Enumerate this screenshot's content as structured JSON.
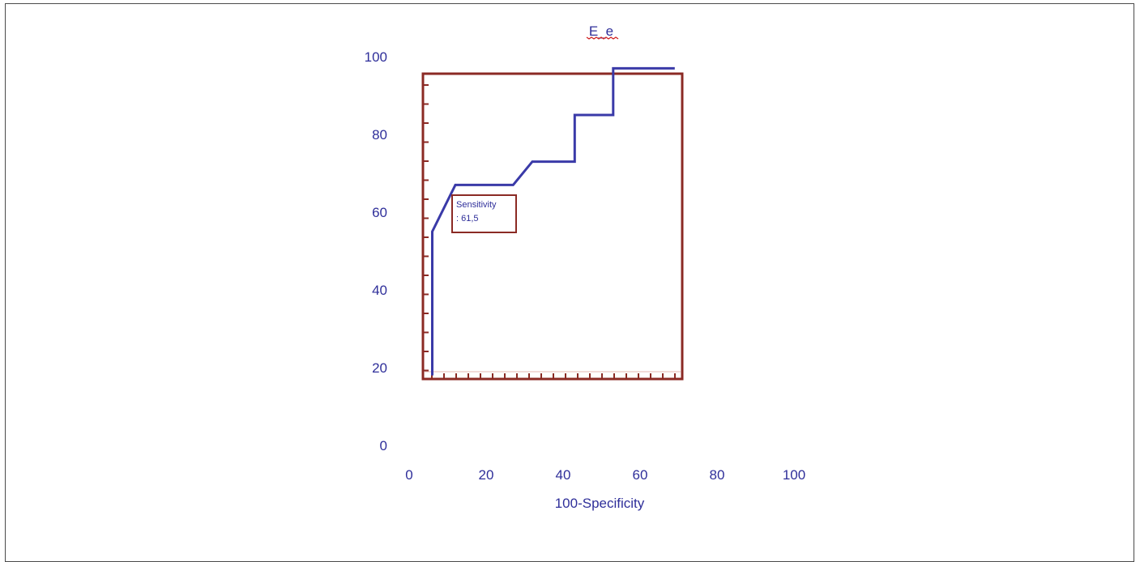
{
  "chart_data": {
    "type": "line",
    "title": "E_e",
    "xlabel": "100-Specificity",
    "ylabel": "",
    "xlim": [
      0,
      100
    ],
    "ylim": [
      0,
      100
    ],
    "x_ticks": [
      "0",
      "20",
      "40",
      "60",
      "80",
      "100"
    ],
    "y_ticks": [
      "0",
      "20",
      "40",
      "60",
      "80",
      "100"
    ],
    "grid": false,
    "series": [
      {
        "x": [
          6,
          6,
          12,
          27,
          32,
          43,
          43,
          53,
          53,
          69
        ],
        "y": [
          18,
          55,
          67,
          67,
          73,
          73,
          85,
          85,
          97,
          97
        ]
      }
    ],
    "annotation": {
      "line1": "Sensitivity",
      "line2": ":  61,5"
    },
    "colors": {
      "curve": "#3a3aa8",
      "frame": "#8b2a24",
      "text": "#2f2f9a",
      "title_underline": "#d02020"
    }
  }
}
